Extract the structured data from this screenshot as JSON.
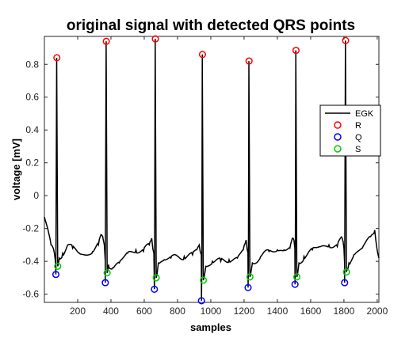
{
  "chart_data": {
    "type": "line",
    "title": "original signal with detected QRS points",
    "xlabel": "samples",
    "ylabel": "voltage [mV]",
    "xlim": [
      0,
      2010
    ],
    "ylim": [
      -0.65,
      0.97
    ],
    "xticks": [
      200,
      400,
      600,
      800,
      1000,
      1200,
      1400,
      1600,
      1800,
      2000
    ],
    "yticks": [
      -0.6,
      -0.4,
      -0.2,
      0,
      0.2,
      0.4,
      0.6,
      0.8
    ],
    "ytick_labels": [
      "-0.6",
      "-0.4",
      "-0.2",
      "0",
      "0.2",
      "0.4",
      "0.6",
      "0.8"
    ],
    "grid": false,
    "legend_position": "right",
    "series": [
      {
        "name": "EGK",
        "color": "#000000",
        "style": "line",
        "beats": [
          {
            "sample": 75,
            "r": 0.84,
            "q": -0.48,
            "s": -0.43
          },
          {
            "sample": 372,
            "r": 0.94,
            "q": -0.53,
            "s": -0.47
          },
          {
            "sample": 667,
            "r": 0.955,
            "q": -0.57,
            "s": -0.5
          },
          {
            "sample": 950,
            "r": 0.86,
            "q": -0.64,
            "s": -0.515
          },
          {
            "sample": 1230,
            "r": 0.82,
            "q": -0.56,
            "s": -0.495
          },
          {
            "sample": 1512,
            "r": 0.885,
            "q": -0.54,
            "s": -0.495
          },
          {
            "sample": 1810,
            "r": 0.945,
            "q": -0.53,
            "s": -0.465
          }
        ],
        "baseline": [
          [
            0,
            -0.13
          ],
          [
            20,
            -0.2
          ],
          [
            40,
            -0.3
          ],
          [
            60,
            -0.35
          ],
          [
            66,
            -0.4
          ],
          [
            90,
            -0.38
          ],
          [
            110,
            -0.35
          ],
          [
            140,
            -0.3
          ],
          [
            170,
            -0.32
          ],
          [
            210,
            -0.35
          ],
          [
            250,
            -0.36
          ],
          [
            290,
            -0.34
          ],
          [
            325,
            -0.3
          ],
          [
            345,
            -0.24
          ],
          [
            360,
            -0.3
          ],
          [
            366,
            -0.4
          ],
          [
            385,
            -0.42
          ],
          [
            410,
            -0.44
          ],
          [
            450,
            -0.41
          ],
          [
            500,
            -0.35
          ],
          [
            550,
            -0.33
          ],
          [
            595,
            -0.34
          ],
          [
            630,
            -0.3
          ],
          [
            645,
            -0.26
          ],
          [
            658,
            -0.35
          ],
          [
            662,
            -0.43
          ],
          [
            685,
            -0.41
          ],
          [
            720,
            -0.39
          ],
          [
            760,
            -0.38
          ],
          [
            800,
            -0.37
          ],
          [
            840,
            -0.37
          ],
          [
            890,
            -0.36
          ],
          [
            915,
            -0.33
          ],
          [
            930,
            -0.3
          ],
          [
            943,
            -0.36
          ],
          [
            946,
            -0.44
          ],
          [
            970,
            -0.43
          ],
          [
            1010,
            -0.4
          ],
          [
            1060,
            -0.4
          ],
          [
            1110,
            -0.39
          ],
          [
            1160,
            -0.38
          ],
          [
            1195,
            -0.33
          ],
          [
            1212,
            -0.27
          ],
          [
            1223,
            -0.35
          ],
          [
            1226,
            -0.43
          ],
          [
            1250,
            -0.41
          ],
          [
            1300,
            -0.37
          ],
          [
            1350,
            -0.34
          ],
          [
            1400,
            -0.33
          ],
          [
            1440,
            -0.33
          ],
          [
            1475,
            -0.32
          ],
          [
            1495,
            -0.26
          ],
          [
            1505,
            -0.32
          ],
          [
            1508,
            -0.4
          ],
          [
            1530,
            -0.41
          ],
          [
            1560,
            -0.37
          ],
          [
            1610,
            -0.33
          ],
          [
            1660,
            -0.31
          ],
          [
            1710,
            -0.3
          ],
          [
            1760,
            -0.31
          ],
          [
            1790,
            -0.26
          ],
          [
            1800,
            -0.32
          ],
          [
            1804,
            -0.42
          ],
          [
            1830,
            -0.41
          ],
          [
            1860,
            -0.36
          ],
          [
            1910,
            -0.32
          ],
          [
            1960,
            -0.25
          ],
          [
            1985,
            -0.21
          ],
          [
            1998,
            -0.32
          ],
          [
            2010,
            -0.38
          ]
        ]
      },
      {
        "name": "R",
        "color": "#ff0000",
        "style": "marker"
      },
      {
        "name": "Q",
        "color": "#0000ff",
        "style": "marker"
      },
      {
        "name": "S",
        "color": "#00cc00",
        "style": "marker"
      }
    ]
  }
}
